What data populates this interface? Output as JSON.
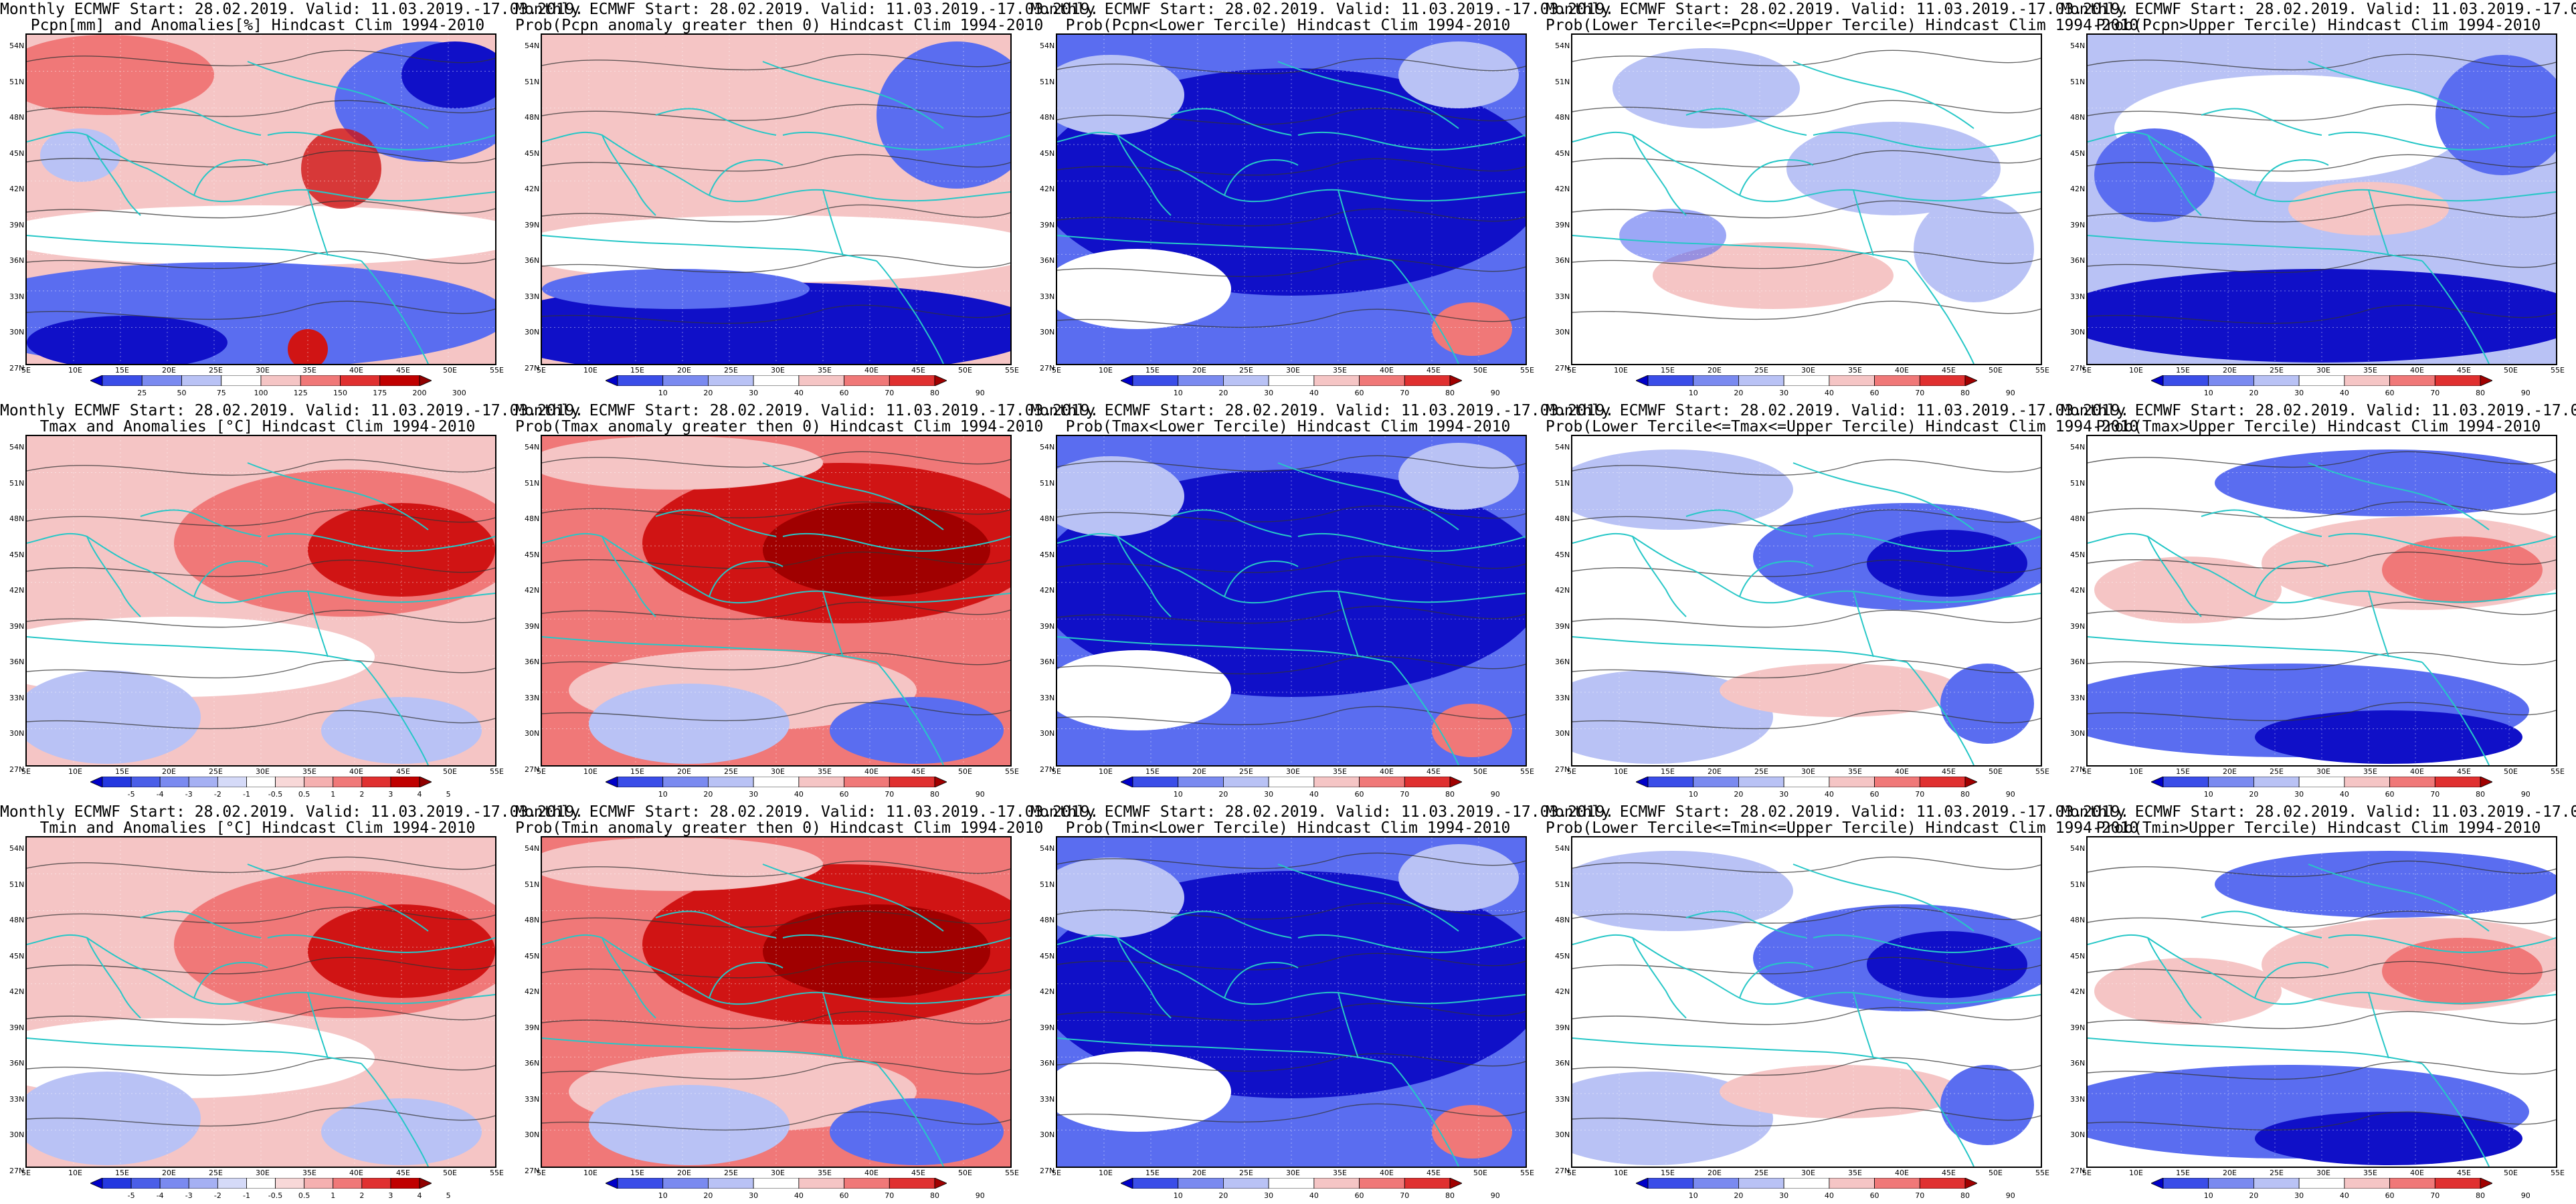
{
  "title_prefix": "Monthly ECMWF Start: 28.02.2019. Valid: 11.03.2019.-17.03.2019.",
  "map": {
    "lat_ticks": [
      "54N",
      "51N",
      "48N",
      "45N",
      "42N",
      "39N",
      "36N",
      "33N",
      "30N",
      "27N"
    ],
    "lon_ticks": [
      "5E",
      "10E",
      "15E",
      "20E",
      "25E",
      "30E",
      "35E",
      "40E",
      "45E",
      "50E",
      "55E"
    ]
  },
  "colors": {
    "deep_blue": "#1010c8",
    "mid_blue": "#5a6df0",
    "light_blue": "#b9c2f5",
    "white": "#ffffff",
    "light_red": "#f5c5c5",
    "mid_red": "#f07878",
    "deep_red": "#d01414",
    "dark_red": "#a00000",
    "coast": "#27c7c7",
    "contour": "#333333"
  },
  "colorbars": {
    "pcpn_anom": {
      "labels": [
        "25",
        "50",
        "75",
        "100",
        "125",
        "150",
        "175",
        "200",
        "300"
      ],
      "colors": [
        "#0000c8",
        "#3a4de8",
        "#7a8af0",
        "#b9c2f5",
        "#ffffff",
        "#f5c5c5",
        "#f07878",
        "#e03030",
        "#c00000",
        "#900000"
      ]
    },
    "prob": {
      "labels": [
        "10",
        "20",
        "30",
        "40",
        "60",
        "70",
        "80",
        "90"
      ],
      "colors": [
        "#0000c8",
        "#3a4de8",
        "#7a8af0",
        "#b9c2f5",
        "#ffffff",
        "#f5c5c5",
        "#f07878",
        "#e03030",
        "#a00000"
      ]
    },
    "temp_anom": {
      "labels": [
        "-5",
        "-4",
        "-3",
        "-2",
        "-1",
        "-0.5",
        "0.5",
        "1",
        "2",
        "3",
        "4",
        "5"
      ],
      "colors": [
        "#0000c8",
        "#2438e0",
        "#4a5ee8",
        "#7a8af0",
        "#a5b0f3",
        "#d5daf8",
        "#ffffff",
        "#f8d8d8",
        "#f5b0b0",
        "#f07878",
        "#e03030",
        "#c00000",
        "#900000"
      ]
    }
  },
  "panels": [
    {
      "line2": "Pcpn[mm] and Anomalies[%] Hindcast Clim 1994-2010",
      "scheme": "pcpn_anom",
      "cbar": "pcpn_anom"
    },
    {
      "line2": "Prob(Pcpn anomaly greater then 0) Hindcast Clim 1994-2010",
      "scheme": "pcpn_prob",
      "cbar": "prob"
    },
    {
      "line2": "Prob(Pcpn<Lower Tercile) Hindcast Clim 1994-2010",
      "scheme": "blue_deep",
      "cbar": "prob"
    },
    {
      "line2": "Prob(Lower Tercile<=Pcpn<=Upper Tercile) Hindcast Clim 1994-2010",
      "scheme": "pale_mix",
      "cbar": "prob"
    },
    {
      "line2": "Prob(Pcpn>Upper Tercile) Hindcast Clim 1994-2010",
      "scheme": "pcpn_upper",
      "cbar": "prob"
    },
    {
      "line2": "Tmax and Anomalies [°C] Hindcast Clim 1994-2010",
      "scheme": "warm",
      "cbar": "temp_anom"
    },
    {
      "line2": "Prob(Tmax anomaly greater then 0) Hindcast Clim 1994-2010",
      "scheme": "warm_strong",
      "cbar": "prob"
    },
    {
      "line2": "Prob(Tmax<Lower Tercile) Hindcast Clim 1994-2010",
      "scheme": "blue_deep",
      "cbar": "prob"
    },
    {
      "line2": "Prob(Lower Tercile<=Tmax<=Upper Tercile) Hindcast Clim 1994-2010",
      "scheme": "pale_mix2",
      "cbar": "prob"
    },
    {
      "line2": "Prob(Tmax>Upper Tercile) Hindcast Clim 1994-2010",
      "scheme": "upper_mix",
      "cbar": "prob"
    },
    {
      "line2": "Tmin and Anomalies [°C] Hindcast Clim 1994-2010",
      "scheme": "warm",
      "cbar": "temp_anom"
    },
    {
      "line2": "Prob(Tmin anomaly greater then 0) Hindcast Clim 1994-2010",
      "scheme": "warm_strong",
      "cbar": "prob"
    },
    {
      "line2": "Prob(Tmin<Lower Tercile) Hindcast Clim 1994-2010",
      "scheme": "blue_deep",
      "cbar": "prob"
    },
    {
      "line2": "Prob(Lower Tercile<=Tmin<=Upper Tercile) Hindcast Clim 1994-2010",
      "scheme": "pale_mix2",
      "cbar": "prob"
    },
    {
      "line2": "Prob(Tmin>Upper Tercile) Hindcast Clim 1994-2010",
      "scheme": "upper_mix",
      "cbar": "prob"
    }
  ]
}
